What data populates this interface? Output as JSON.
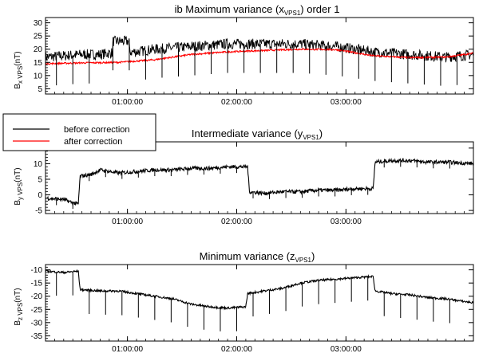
{
  "chart_data": [
    {
      "type": "line",
      "title_main": "ib Maximum variance (x",
      "title_sub": "VPS1",
      "title_end": ") order 1",
      "ylabel_main": "B",
      "ylabel_sub": "x VPS",
      "ylabel_end": "(nT)",
      "ylim": [
        3,
        32
      ],
      "yticks": [
        5,
        10,
        15,
        20,
        25,
        30
      ],
      "xlim_min": [
        0,
        235
      ],
      "xtick_min": [
        45,
        105,
        165
      ],
      "xtick_labels": [
        "01:00:00",
        "02:00:00",
        "03:00:00"
      ],
      "show_xtick_labels": true,
      "series": [
        {
          "name": "before correction",
          "color": "#000000",
          "noise": 2.0,
          "x": [
            0,
            10,
            20,
            30,
            40,
            50,
            60,
            70,
            80,
            90,
            100,
            110,
            120,
            130,
            140,
            150,
            160,
            170,
            180,
            190,
            200,
            210,
            220,
            235
          ],
          "y": [
            17,
            17.5,
            18,
            18,
            19,
            19,
            20,
            20.5,
            21,
            21.5,
            22,
            22,
            22,
            22,
            22,
            21.5,
            21,
            20,
            19,
            18.5,
            18,
            17.5,
            17,
            18
          ],
          "step": {
            "from": 37,
            "to": 46,
            "value": 23
          }
        },
        {
          "name": "after correction",
          "color": "#ff0000",
          "noise": 0.3,
          "x": [
            0,
            20,
            40,
            60,
            80,
            100,
            120,
            140,
            160,
            180,
            200,
            220,
            235
          ],
          "y": [
            14.5,
            14.8,
            15,
            16,
            18,
            19,
            19.5,
            20,
            19.8,
            17.5,
            16.8,
            17,
            18.5
          ]
        }
      ],
      "spikes": {
        "x": [
          6,
          15,
          24,
          37,
          46,
          55,
          64,
          73,
          82,
          91,
          100,
          109,
          118,
          127,
          136,
          145,
          154,
          163,
          172,
          181,
          190,
          199,
          208,
          217,
          226
        ],
        "depth": 11
      }
    },
    {
      "type": "line",
      "title_main": "Intermediate variance (y",
      "title_sub": "VPS1",
      "title_end": ")",
      "ylabel_main": "B",
      "ylabel_sub": "y VPS",
      "ylabel_end": "(nT)",
      "ylim": [
        -6,
        17
      ],
      "yticks": [
        -5,
        0,
        5,
        10,
        15
      ],
      "xlim_min": [
        0,
        235
      ],
      "xtick_min": [
        45,
        105,
        165
      ],
      "xtick_labels": [
        "01:00:00",
        "02:00:00",
        "03:00:00"
      ],
      "show_xtick_labels": true,
      "series": [
        {
          "name": "By",
          "color": "#000000",
          "noise": 0.6,
          "x": [
            0,
            10,
            15,
            18,
            19,
            25,
            30,
            40,
            50,
            60,
            70,
            80,
            90,
            100,
            111,
            112,
            120,
            130,
            140,
            150,
            160,
            170,
            180,
            181,
            190,
            200,
            210,
            220,
            235
          ],
          "y": [
            -1,
            -1.5,
            -2.5,
            -3,
            6,
            6.5,
            8,
            7,
            7.5,
            8,
            8,
            8.5,
            8.5,
            9,
            9,
            1,
            0.5,
            1,
            1,
            1.5,
            1.5,
            2,
            2,
            10.5,
            11,
            11,
            10.5,
            10.5,
            10
          ]
        }
      ],
      "spikes": {
        "x": [
          6,
          15,
          24,
          33,
          42,
          51,
          60,
          69,
          78,
          87,
          96,
          105,
          114,
          123,
          132,
          141,
          150,
          159,
          168,
          177,
          186,
          195,
          204,
          213,
          222
        ],
        "depth": 2
      }
    },
    {
      "type": "line",
      "title_main": "Minimum variance (z",
      "title_sub": "VPS1",
      "title_end": ")",
      "ylabel_main": "B",
      "ylabel_sub": "z VPS",
      "ylabel_end": "(nT)",
      "ylim": [
        -37,
        -8
      ],
      "yticks": [
        -35,
        -30,
        -25,
        -20,
        -15,
        -10
      ],
      "xlim_min": [
        0,
        235
      ],
      "xtick_min": [
        45,
        105,
        165
      ],
      "xtick_labels": [
        "01:00:00",
        "02:00:00",
        "03:00:00"
      ],
      "show_xtick_labels": true,
      "series": [
        {
          "name": "Bz",
          "color": "#000000",
          "noise": 0.4,
          "x": [
            0,
            10,
            18,
            19,
            30,
            40,
            50,
            60,
            70,
            80,
            90,
            100,
            110,
            111,
            120,
            130,
            140,
            150,
            160,
            170,
            180,
            181,
            190,
            200,
            210,
            220,
            235
          ],
          "y": [
            -10.5,
            -11,
            -10.5,
            -17.5,
            -18,
            -18,
            -19,
            -20,
            -21,
            -23,
            -24,
            -24.5,
            -24,
            -19,
            -18,
            -17,
            -15,
            -14,
            -13.5,
            -13,
            -12.5,
            -18,
            -19,
            -19.5,
            -20.5,
            -21,
            -22.5
          ]
        }
      ],
      "spikes": {
        "x": [
          6,
          15,
          24,
          33,
          42,
          51,
          60,
          69,
          78,
          87,
          96,
          105,
          114,
          123,
          132,
          141,
          150,
          159,
          168,
          177,
          186,
          195,
          204,
          213,
          222
        ],
        "depth": 9
      }
    }
  ],
  "legend": {
    "items": [
      {
        "label": "before correction",
        "color": "#000000"
      },
      {
        "label": "after correction",
        "color": "#ff0000"
      }
    ]
  }
}
